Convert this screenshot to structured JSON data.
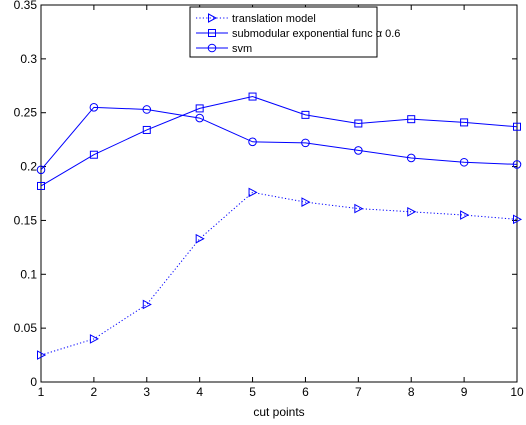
{
  "chart_data": {
    "type": "line",
    "xlabel": "cut points",
    "ylabel": "",
    "title": "",
    "xlim": [
      1,
      10
    ],
    "ylim": [
      0,
      0.35
    ],
    "x_ticks": [
      "1",
      "2",
      "3",
      "4",
      "5",
      "6",
      "7",
      "8",
      "9",
      "10"
    ],
    "y_ticks": [
      "0",
      "0.05",
      "0.1",
      "0.15",
      "0.2",
      "0.25",
      "0.3",
      "0.35"
    ],
    "grid": false,
    "legend_position": "top-center",
    "series": [
      {
        "name": "translation model",
        "line_style": "dotted",
        "marker": "triangle-right",
        "color": "#0000ff",
        "x": [
          1,
          2,
          3,
          4,
          5,
          6,
          7,
          8,
          9,
          10
        ],
        "y": [
          0.025,
          0.04,
          0.072,
          0.133,
          0.176,
          0.167,
          0.161,
          0.158,
          0.155,
          0.151
        ]
      },
      {
        "name": "submodular exponential func α 0.6",
        "line_style": "solid",
        "marker": "square",
        "color": "#0000ff",
        "x": [
          1,
          2,
          3,
          4,
          5,
          6,
          7,
          8,
          9,
          10
        ],
        "y": [
          0.182,
          0.211,
          0.234,
          0.254,
          0.265,
          0.248,
          0.24,
          0.244,
          0.241,
          0.237
        ]
      },
      {
        "name": "svm",
        "line_style": "solid",
        "marker": "circle",
        "color": "#0000ff",
        "x": [
          1,
          2,
          3,
          4,
          5,
          6,
          7,
          8,
          9,
          10
        ],
        "y": [
          0.197,
          0.255,
          0.253,
          0.245,
          0.223,
          0.222,
          0.215,
          0.208,
          0.204,
          0.202
        ]
      }
    ]
  }
}
